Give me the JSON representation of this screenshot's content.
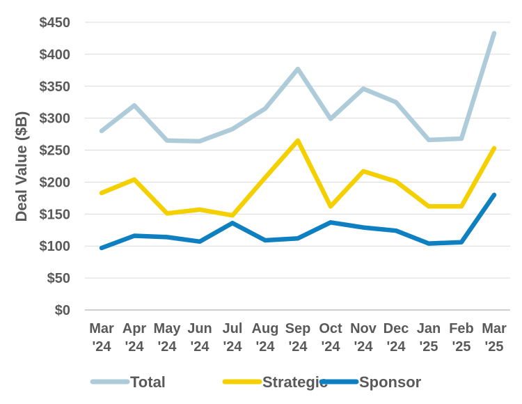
{
  "chart_data": {
    "type": "line",
    "title": "",
    "xlabel": "",
    "ylabel": "Deal Value ($B)",
    "ylim": [
      0,
      450
    ],
    "yticks": [
      {
        "value": 0,
        "label": "$0"
      },
      {
        "value": 50,
        "label": "$50"
      },
      {
        "value": 100,
        "label": "$100"
      },
      {
        "value": 150,
        "label": "$150"
      },
      {
        "value": 200,
        "label": "$200"
      },
      {
        "value": 250,
        "label": "$250"
      },
      {
        "value": 300,
        "label": "$300"
      },
      {
        "value": 350,
        "label": "$350"
      },
      {
        "value": 400,
        "label": "$400"
      },
      {
        "value": 450,
        "label": "$450"
      }
    ],
    "categories": [
      {
        "month": "Mar",
        "year": "'24"
      },
      {
        "month": "Apr",
        "year": "'24"
      },
      {
        "month": "May",
        "year": "'24"
      },
      {
        "month": "Jun",
        "year": "'24"
      },
      {
        "month": "Jul",
        "year": "'24"
      },
      {
        "month": "Aug",
        "year": "'24"
      },
      {
        "month": "Sep",
        "year": "'24"
      },
      {
        "month": "Oct",
        "year": "'24"
      },
      {
        "month": "Nov",
        "year": "'24"
      },
      {
        "month": "Dec",
        "year": "'24"
      },
      {
        "month": "Jan",
        "year": "'25"
      },
      {
        "month": "Feb",
        "year": "'25"
      },
      {
        "month": "Mar",
        "year": "'25"
      }
    ],
    "series": [
      {
        "name": "Total",
        "color": "#aecbd9",
        "values": [
          280,
          320,
          265,
          264,
          283,
          315,
          377,
          299,
          346,
          325,
          266,
          268,
          433
        ]
      },
      {
        "name": "Strategic",
        "color": "#f5d000",
        "values": [
          183,
          204,
          151,
          157,
          148,
          207,
          265,
          162,
          217,
          201,
          162,
          162,
          253
        ]
      },
      {
        "name": "Sponsor",
        "color": "#0e7fc0",
        "values": [
          97,
          116,
          114,
          107,
          136,
          109,
          112,
          137,
          129,
          124,
          104,
          106,
          180
        ]
      }
    ],
    "grid": true,
    "legend": "bottom"
  }
}
